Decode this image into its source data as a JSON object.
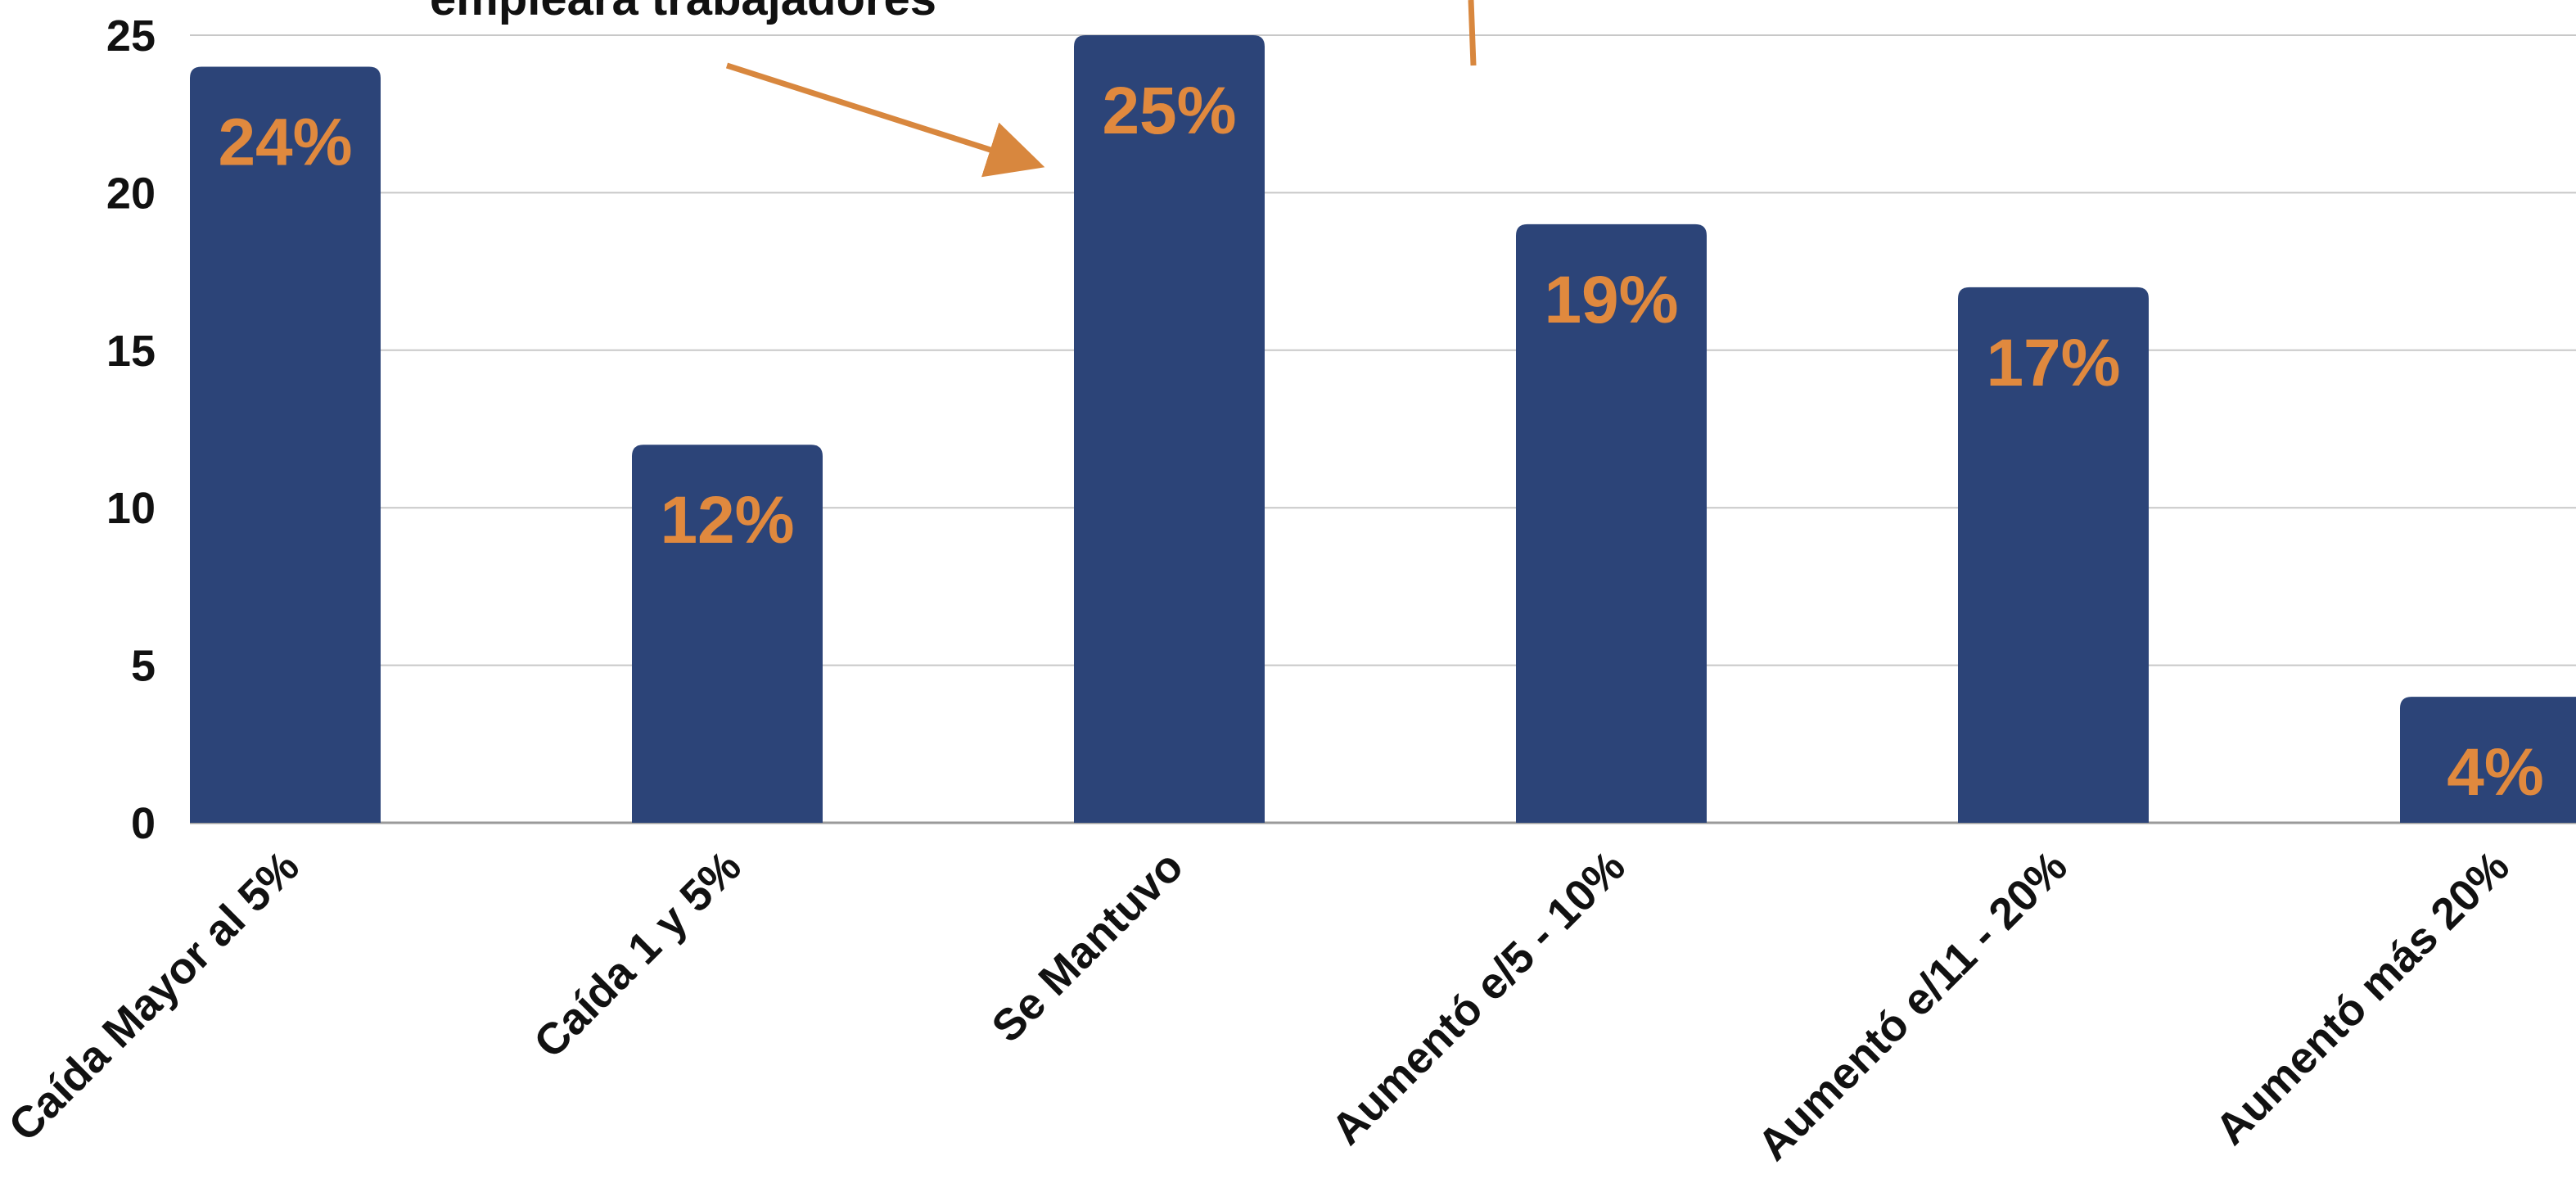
{
  "colors": {
    "bar": "#2c4478",
    "label": "#e0893e",
    "arrow": "#d8873e",
    "grid": "#c8c8c8",
    "axis": "#9a9a9a",
    "text": "#111111",
    "background": "#ffffff"
  },
  "chart_data": {
    "type": "bar",
    "categories": [
      "Caída Mayor al 5%",
      "Caída 1 y 5%",
      "Se Mantuvo",
      "Aumentó e/5 - 10%",
      "Aumentó e/11 - 20%",
      "Aumentó más 20%"
    ],
    "values": [
      24,
      12,
      25,
      19,
      17,
      4
    ],
    "data_labels": [
      "24%",
      "12%",
      "25%",
      "19%",
      "17%",
      "4%"
    ],
    "ylim": [
      0,
      25
    ],
    "yticks": [
      0,
      5,
      10,
      15,
      20,
      25
    ],
    "grid": true,
    "annotations": [
      {
        "text": "empleara trabajadores",
        "arrow_target_category": "Se Mantuvo"
      }
    ]
  }
}
